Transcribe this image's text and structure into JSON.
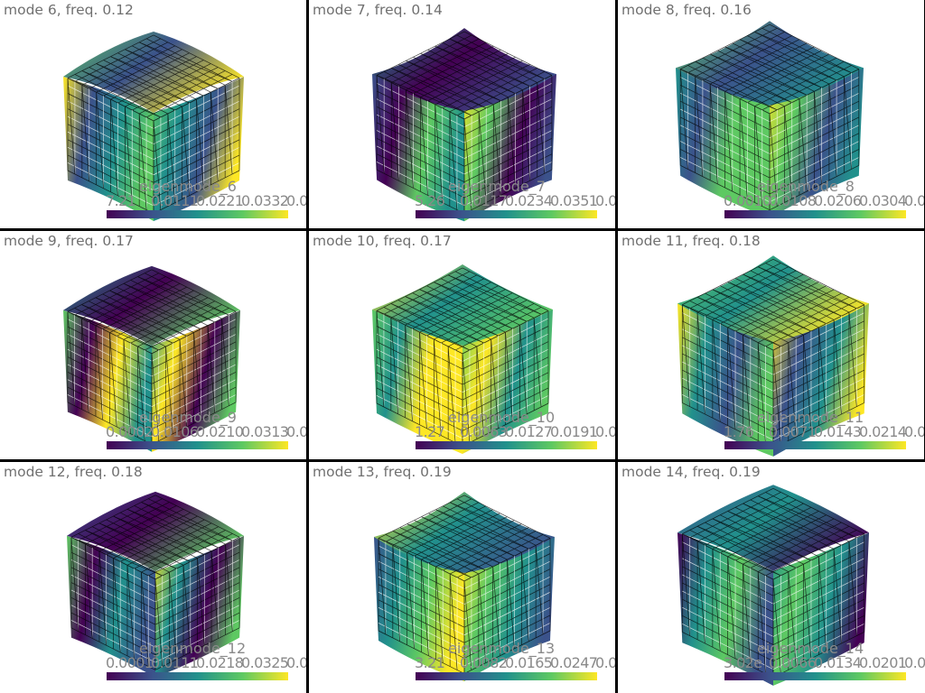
{
  "colormap": [
    "#440154",
    "#3b528b",
    "#21918c",
    "#5ec962",
    "#fde725"
  ],
  "panels": [
    {
      "title": "mode 6, freq. 0.12",
      "colorbar_title": "eigenmode_6",
      "ticks": [
        "7.21",
        "0.0111",
        "0.0221",
        "0.0332",
        "0.0"
      ]
    },
    {
      "title": "mode 7, freq. 0.14",
      "colorbar_title": "eigenmode_7",
      "ticks": [
        "5.26",
        "0.0117",
        "0.0234",
        "0.0351",
        "0.0"
      ]
    },
    {
      "title": "mode 8, freq. 0.16",
      "colorbar_title": "eigenmode_8",
      "ticks": [
        "0.0010",
        "0.0108",
        "0.0206",
        "0.0304",
        "0.0"
      ]
    },
    {
      "title": "mode 9, freq. 0.17",
      "colorbar_title": "eigenmode_9",
      "ticks": [
        "0.0002",
        "0.0106",
        "0.0210",
        "0.0313",
        "0.0"
      ]
    },
    {
      "title": "mode 10, freq. 0.17",
      "colorbar_title": "eigenmode_10",
      "ticks": [
        "1.27",
        "0.0063",
        "0.0127",
        "0.0191",
        "0.0"
      ]
    },
    {
      "title": "mode 11, freq. 0.18",
      "colorbar_title": "eigenmode_11",
      "ticks": [
        "1.76",
        "0.0071",
        "0.0143",
        "0.0214",
        "0.0"
      ]
    },
    {
      "title": "mode 12, freq. 0.18",
      "colorbar_title": "eigenmode_12",
      "ticks": [
        "0.0001",
        "0.0111",
        "0.0218",
        "0.0325",
        "0.0"
      ]
    },
    {
      "title": "mode 13, freq. 0.19",
      "colorbar_title": "eigenmode_13",
      "ticks": [
        "3.21",
        "0.0082",
        "0.0165",
        "0.0247",
        "0.0"
      ]
    },
    {
      "title": "mode 14, freq. 0.19",
      "colorbar_title": "eigenmode_14",
      "ticks": [
        "3.02e",
        "0.0066",
        "0.0134",
        "0.0201",
        "0.0"
      ]
    }
  ]
}
